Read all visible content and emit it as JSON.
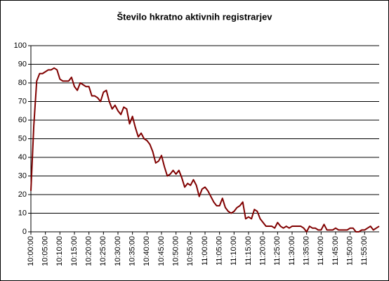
{
  "chart_data": {
    "type": "line",
    "title": "Število hkratno aktivnih registrarjev",
    "categories": [
      "10:00:00",
      null,
      null,
      null,
      null,
      "10:05:00",
      null,
      null,
      null,
      null,
      "10:10:00",
      null,
      null,
      null,
      null,
      "10:15:00",
      null,
      null,
      null,
      null,
      "10:20:00",
      null,
      null,
      null,
      null,
      "10:25:00",
      null,
      null,
      null,
      null,
      "10:30:00",
      null,
      null,
      null,
      null,
      "10:35:00",
      null,
      null,
      null,
      null,
      "10:40:00",
      null,
      null,
      null,
      null,
      "10:45:00",
      null,
      null,
      null,
      null,
      "10:50:00",
      null,
      null,
      null,
      null,
      "10:55:00",
      null,
      null,
      null,
      null,
      "11:00:00",
      null,
      null,
      null,
      null,
      "11:05:00",
      null,
      null,
      null,
      null,
      "11:10:00",
      null,
      null,
      null,
      null,
      "11:15:00",
      null,
      null,
      null,
      null,
      "11:20:00",
      null,
      null,
      null,
      null,
      "11:25:00",
      null,
      null,
      null,
      null,
      "11:30:00",
      null,
      null,
      null,
      null,
      "11:35:00",
      null,
      null,
      null,
      null,
      "11:40:00",
      null,
      null,
      null,
      null,
      "11:45:00",
      null,
      null,
      null,
      null,
      "11:50:00",
      null,
      null,
      null,
      null,
      "11:55:00",
      null,
      null,
      null,
      null,
      null
    ],
    "series": [
      {
        "name": null,
        "color": "#800000",
        "values": [
          22,
          57,
          81,
          85,
          85,
          86,
          87,
          87,
          88,
          87,
          82,
          81,
          81,
          81,
          83,
          78,
          76,
          80,
          79,
          78,
          78,
          73,
          73,
          72,
          70,
          75,
          76,
          70,
          66,
          68,
          65,
          63,
          67,
          66,
          58,
          62,
          56,
          51,
          53,
          50,
          49,
          47,
          43,
          37,
          38,
          41,
          35,
          30,
          31,
          33,
          31,
          33,
          29,
          24,
          26,
          25,
          28,
          25,
          19,
          23,
          24,
          22,
          19,
          16,
          14,
          14,
          18,
          13,
          11,
          10,
          11,
          13,
          14,
          16,
          7,
          8,
          7,
          12,
          11,
          7,
          5,
          3,
          3,
          3,
          2,
          5,
          3,
          2,
          3,
          2,
          3,
          3,
          3,
          3,
          2,
          0,
          3,
          2,
          2,
          1,
          1,
          4,
          1,
          1,
          1,
          2,
          1,
          1,
          1,
          1,
          2,
          2,
          0,
          0,
          1,
          1,
          2,
          3,
          1,
          2,
          3
        ]
      }
    ],
    "ylim": [
      0,
      100
    ],
    "yticks": [
      0,
      10,
      20,
      30,
      40,
      50,
      60,
      70,
      80,
      90,
      100
    ],
    "grid": true
  }
}
